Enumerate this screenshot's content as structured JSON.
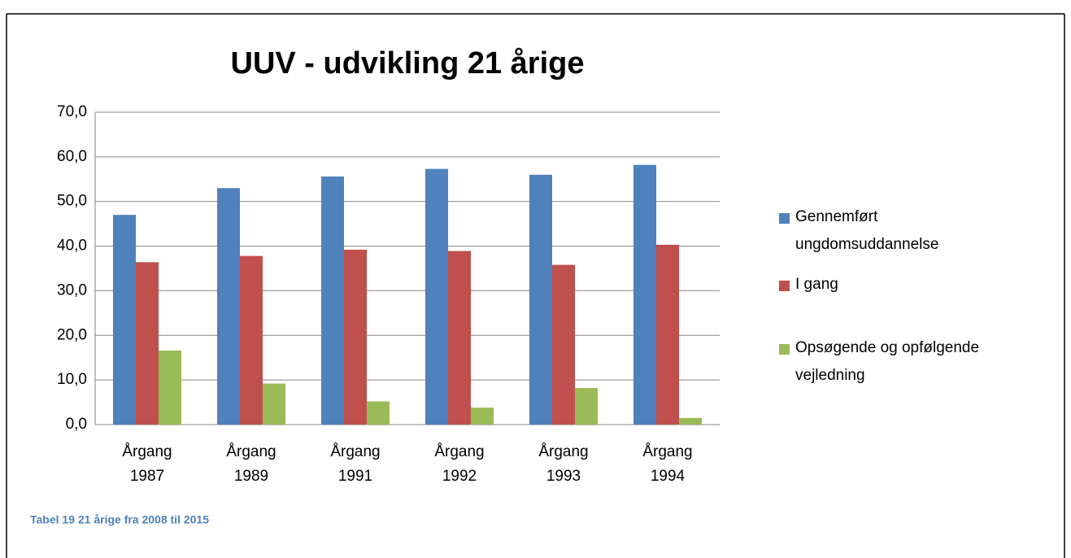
{
  "chart_data": {
    "type": "bar",
    "title": "UUV - udvikling 21 årige",
    "categories": [
      "Årgang 1987",
      "Årgang 1989",
      "Årgang 1991",
      "Årgang 1992",
      "Årgang 1993",
      "Årgang 1994"
    ],
    "series": [
      {
        "name": "Gennemført ungdomsuddannelse",
        "color": "#4f81bd",
        "values": [
          47.0,
          53.0,
          55.6,
          57.3,
          56.0,
          58.2
        ]
      },
      {
        "name": "I gang",
        "color": "#c0504d",
        "values": [
          36.4,
          37.8,
          39.2,
          38.9,
          35.8,
          40.3
        ]
      },
      {
        "name": "Opsøgende og opfølgende vejledning",
        "color": "#9bbb59",
        "values": [
          16.6,
          9.2,
          5.2,
          3.8,
          8.2,
          1.5
        ]
      }
    ],
    "ylim": [
      0,
      70
    ],
    "yticks": [
      {
        "value": 0,
        "label": "0,0"
      },
      {
        "value": 10,
        "label": "10,0"
      },
      {
        "value": 20,
        "label": "20,0"
      },
      {
        "value": 30,
        "label": "30,0"
      },
      {
        "value": 40,
        "label": "40,0"
      },
      {
        "value": 50,
        "label": "50,0"
      },
      {
        "value": 60,
        "label": "60,0"
      },
      {
        "value": 70,
        "label": "70,0"
      }
    ],
    "grid": true,
    "legend": "right",
    "caption": "Tabel 19 21 årige fra 2008 til 2015"
  }
}
